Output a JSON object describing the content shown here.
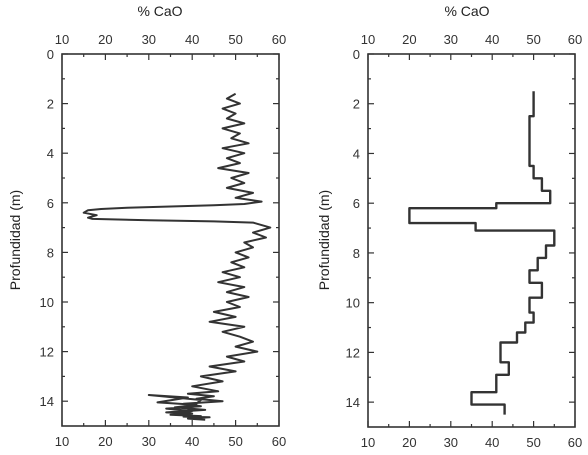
{
  "chart_data": [
    {
      "type": "line",
      "orientation": "depth-profile",
      "xlabel": "% CaO",
      "ylabel": "Profundidad (m)",
      "xlim": [
        10,
        60
      ],
      "ylim": [
        0,
        15
      ],
      "xticks": [
        "10",
        "20",
        "30",
        "40",
        "50",
        "60"
      ],
      "yticks": [
        "0",
        "2",
        "4",
        "6",
        "8",
        "10",
        "12",
        "14"
      ],
      "y_inverted": true,
      "x_axis_labels": "top-and-bottom",
      "series": [
        {
          "x": [
            50,
            48,
            51,
            47,
            50,
            48,
            52,
            47,
            51,
            49,
            53,
            47,
            52,
            48,
            51,
            46,
            53,
            49,
            52,
            48,
            54,
            50,
            56,
            52,
            45,
            35,
            25,
            19,
            16,
            15,
            18,
            17,
            16,
            17,
            30,
            45,
            54,
            56,
            58,
            54,
            57,
            52,
            54,
            50,
            53,
            49,
            52,
            47,
            51,
            46,
            52,
            48,
            53,
            48,
            51,
            45,
            50,
            44,
            52,
            47,
            51,
            54,
            50,
            55,
            48,
            52,
            44,
            50,
            42,
            47,
            40,
            46,
            39,
            45,
            41,
            47,
            38,
            42,
            34,
            40,
            38,
            42,
            30,
            39,
            32,
            41,
            36,
            43,
            34,
            40,
            35,
            42,
            38,
            44,
            39,
            43
          ],
          "y": [
            1.6,
            1.8,
            2.0,
            2.2,
            2.4,
            2.6,
            2.8,
            3.0,
            3.2,
            3.4,
            3.6,
            3.8,
            4.0,
            4.2,
            4.4,
            4.6,
            4.8,
            5.0,
            5.2,
            5.4,
            5.6,
            5.8,
            5.95,
            6.05,
            6.1,
            6.15,
            6.2,
            6.25,
            6.3,
            6.4,
            6.5,
            6.55,
            6.6,
            6.65,
            6.7,
            6.75,
            6.8,
            6.9,
            7.0,
            7.2,
            7.4,
            7.6,
            7.8,
            8.0,
            8.2,
            8.4,
            8.6,
            8.8,
            9.0,
            9.2,
            9.4,
            9.6,
            9.8,
            10.0,
            10.2,
            10.4,
            10.6,
            10.8,
            11.0,
            11.2,
            11.4,
            11.6,
            11.8,
            12.0,
            12.2,
            12.4,
            12.6,
            12.8,
            13.0,
            13.2,
            13.4,
            13.6,
            13.7,
            13.8,
            13.9,
            14.0,
            14.1,
            14.2,
            14.3,
            14.4,
            14.5,
            13.95,
            13.75,
            13.85,
            14.05,
            14.15,
            14.25,
            14.35,
            14.45,
            14.5,
            14.55,
            14.6,
            14.62,
            14.65,
            14.7,
            14.75
          ]
        }
      ]
    },
    {
      "type": "line",
      "orientation": "depth-profile-step",
      "xlabel": "% CaO",
      "ylabel": "Profundidad (m)",
      "xlim": [
        10,
        60
      ],
      "ylim": [
        0,
        15
      ],
      "xticks": [
        "10",
        "20",
        "30",
        "40",
        "50",
        "60"
      ],
      "yticks": [
        "0",
        "2",
        "4",
        "6",
        "8",
        "10",
        "12",
        "14"
      ],
      "y_inverted": true,
      "x_axis_labels": "top-and-bottom",
      "series": [
        {
          "x": [
            50,
            50,
            49,
            49,
            50,
            50,
            52,
            52,
            54,
            54,
            41,
            41,
            20,
            20,
            36,
            36,
            55,
            55,
            53,
            53,
            51,
            51,
            49,
            49,
            52,
            52,
            49,
            49,
            50,
            50,
            48,
            48,
            46,
            46,
            42,
            42,
            44,
            44,
            41,
            41,
            35,
            35,
            43,
            43
          ],
          "y": [
            1.5,
            2.5,
            2.5,
            4.5,
            4.5,
            5.0,
            5.0,
            5.5,
            5.5,
            6.0,
            6.0,
            6.2,
            6.2,
            6.8,
            6.8,
            7.1,
            7.1,
            7.7,
            7.7,
            8.2,
            8.2,
            8.7,
            8.7,
            9.2,
            9.2,
            9.8,
            9.8,
            10.4,
            10.4,
            10.8,
            10.8,
            11.2,
            11.2,
            11.6,
            11.6,
            12.4,
            12.4,
            12.9,
            12.9,
            13.6,
            13.6,
            14.1,
            14.1,
            14.5
          ]
        }
      ]
    }
  ]
}
